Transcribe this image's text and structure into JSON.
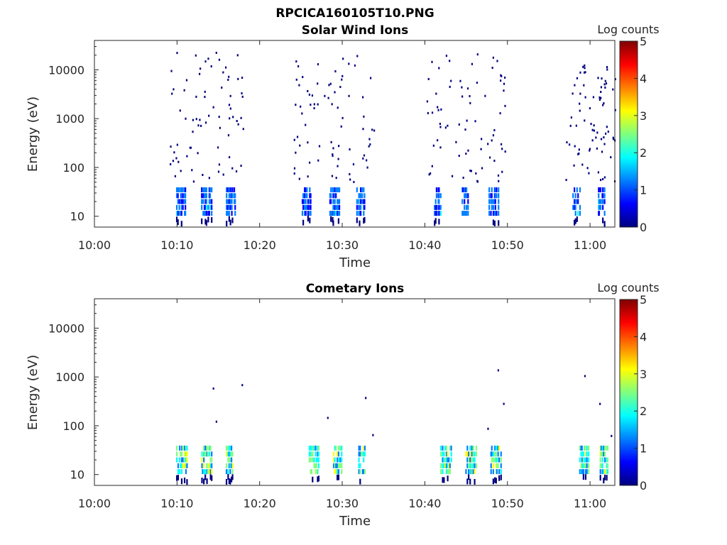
{
  "figure_title": "RPCICA160105T10.PNG",
  "colormap": [
    "#00007f",
    "#0000ff",
    "#007fff",
    "#00ffff",
    "#7fff7f",
    "#ffff00",
    "#ff7f00",
    "#ff0000",
    "#7f0000"
  ],
  "chart_data": [
    {
      "type": "heatmap",
      "title": "Solar Wind Ions",
      "xlabel": "Time",
      "ylabel": "Energy (eV)",
      "y_scale": "log",
      "x_range": [
        "10:00",
        "11:03"
      ],
      "y_range": [
        6,
        40000
      ],
      "x_ticks": [
        "10:00",
        "10:10",
        "10:20",
        "10:30",
        "10:40",
        "10:50",
        "11:00"
      ],
      "y_ticks": [
        "10",
        "100",
        "1000",
        "10000"
      ],
      "colorbar": {
        "label": "Log counts",
        "range": [
          0,
          5
        ],
        "ticks": [
          "0",
          "1",
          "2",
          "3",
          "4",
          "5"
        ]
      },
      "bursts": [
        {
          "start": "10:09",
          "end": "10:18",
          "low_energy_band": [
            10,
            40
          ],
          "sparse_high_energy_max": 25000,
          "peak_log_counts": 1.6
        },
        {
          "start": "10:24",
          "end": "10:34",
          "low_energy_band": [
            10,
            40
          ],
          "sparse_high_energy_max": 25000,
          "peak_log_counts": 1.6
        },
        {
          "start": "10:40",
          "end": "10:50",
          "low_energy_band": [
            10,
            40
          ],
          "sparse_high_energy_max": 25000,
          "peak_log_counts": 1.6
        },
        {
          "start": "10:57",
          "end": "11:03",
          "low_energy_band": [
            10,
            40
          ],
          "sparse_high_energy_max": 20000,
          "peak_log_counts": 1.6
        }
      ]
    },
    {
      "type": "heatmap",
      "title": "Cometary Ions",
      "xlabel": "Time",
      "ylabel": "Energy (eV)",
      "y_scale": "log",
      "x_range": [
        "10:00",
        "11:03"
      ],
      "y_range": [
        6,
        40000
      ],
      "x_ticks": [
        "10:00",
        "10:10",
        "10:20",
        "10:30",
        "10:40",
        "10:50",
        "11:00"
      ],
      "y_ticks": [
        "10",
        "100",
        "1000",
        "10000"
      ],
      "colorbar": {
        "label": "Log counts",
        "range": [
          0,
          5
        ],
        "ticks": [
          "0",
          "1",
          "2",
          "3",
          "4",
          "5"
        ]
      },
      "bursts": [
        {
          "start": "10:09",
          "end": "10:18",
          "low_energy_band": [
            10,
            40
          ],
          "peak_log_counts": 3.0
        },
        {
          "start": "10:25",
          "end": "10:34",
          "low_energy_band": [
            10,
            40
          ],
          "peak_log_counts": 3.0
        },
        {
          "start": "10:41",
          "end": "10:50",
          "low_energy_band": [
            10,
            40
          ],
          "peak_log_counts": 3.0
        },
        {
          "start": "10:58",
          "end": "11:03",
          "low_energy_band": [
            10,
            40
          ],
          "peak_log_counts": 3.0
        }
      ]
    }
  ]
}
